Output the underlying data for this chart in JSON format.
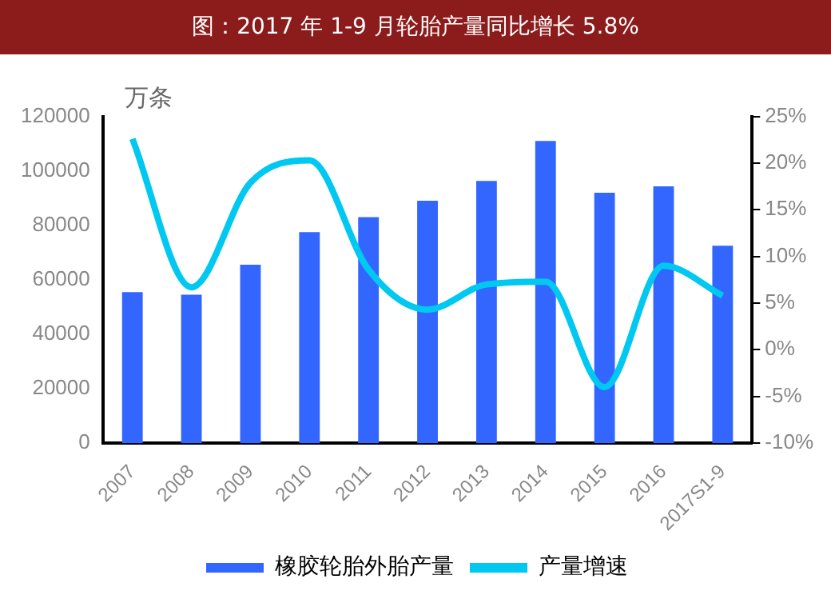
{
  "chart_data": {
    "type": "bar",
    "title": "图：2017 年 1-9 月轮胎产量同比增长 5.8%",
    "ylabel": "万条",
    "categories": [
      "2007",
      "2008",
      "2009",
      "2010",
      "2011",
      "2012",
      "2013",
      "2014",
      "2015",
      "2016",
      "2017S1-9"
    ],
    "series": [
      {
        "name": "橡胶轮胎外胎产量",
        "color": "#3366ff",
        "values": [
          55500,
          54500,
          65500,
          77500,
          83000,
          89000,
          96300,
          111000,
          92000,
          94300,
          72500
        ]
      },
      {
        "name": "产量增速",
        "type": "line",
        "axis": "y2",
        "color": "#00c8f0",
        "values": [
          22.6,
          6.7,
          17.9,
          20.3,
          8.6,
          4.3,
          7.0,
          7.3,
          -4.0,
          9.0,
          5.8
        ]
      }
    ],
    "ylim": [
      0,
      120000
    ],
    "yticks": [
      0,
      20000,
      40000,
      60000,
      80000,
      100000,
      120000
    ],
    "y2lim": [
      -10,
      25
    ],
    "y2ticks": [
      {
        "value": -10,
        "label": "-10%"
      },
      {
        "value": -5,
        "label": "-5%"
      },
      {
        "value": 0,
        "label": "0%"
      },
      {
        "value": 5,
        "label": "5%"
      },
      {
        "value": 10,
        "label": "10%"
      },
      {
        "value": 15,
        "label": "15%"
      },
      {
        "value": 20,
        "label": "20%"
      },
      {
        "value": 25,
        "label": "25%"
      }
    ],
    "grid": false,
    "legend": "bottom",
    "marker": "none"
  }
}
